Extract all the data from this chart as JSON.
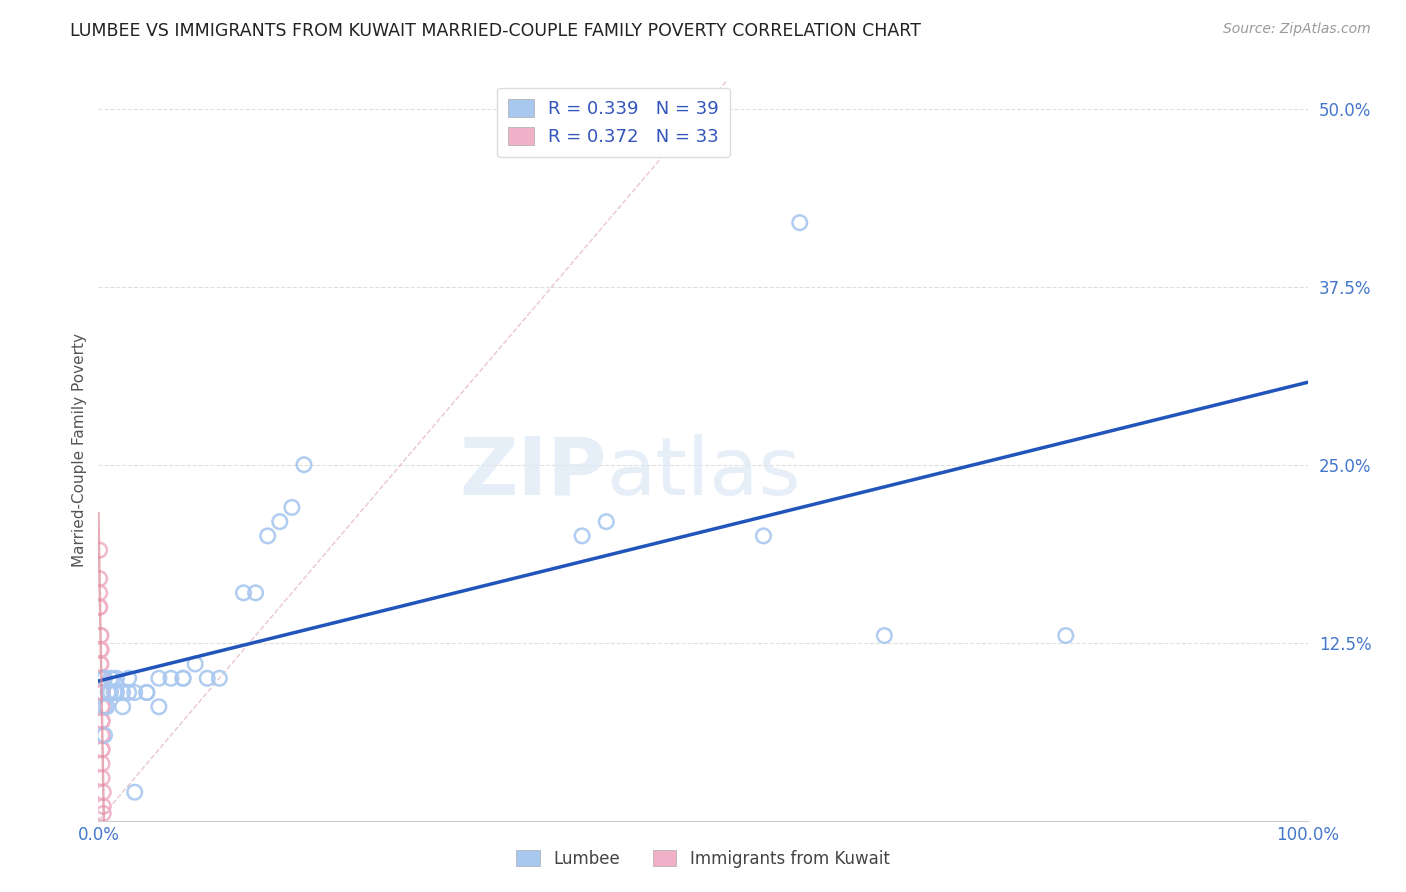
{
  "title": "LUMBEE VS IMMIGRANTS FROM KUWAIT MARRIED-COUPLE FAMILY POVERTY CORRELATION CHART",
  "source": "Source: ZipAtlas.com",
  "ylabel": "Married-Couple Family Poverty",
  "xlim": [
    0.0,
    1.0
  ],
  "ylim": [
    0.0,
    0.52
  ],
  "xticks": [
    0.0,
    0.25,
    0.5,
    0.75,
    1.0
  ],
  "xtick_labels": [
    "0.0%",
    "",
    "",
    "",
    "100.0%"
  ],
  "yticks": [
    0.0,
    0.125,
    0.25,
    0.375,
    0.5
  ],
  "ytick_labels": [
    "",
    "12.5%",
    "25.0%",
    "37.5%",
    "50.0%"
  ],
  "background_color": "#ffffff",
  "grid_color": "#e0e0e0",
  "lumbee_color": "#a8c8f0",
  "kuwait_color": "#f0b0c8",
  "trendline_lumbee_color": "#2255bb",
  "trendline_kuwait_color": "#dd8899",
  "diagonal_color": "#e8c0c8",
  "watermark_zip": "ZIP",
  "watermark_atlas": "atlas",
  "lumbee_x": [
    0.005,
    0.005,
    0.005,
    0.007,
    0.008,
    0.01,
    0.01,
    0.012,
    0.013,
    0.015,
    0.015,
    0.02,
    0.02,
    0.025,
    0.025,
    0.03,
    0.04,
    0.04,
    0.05,
    0.05,
    0.06,
    0.07,
    0.07,
    0.08,
    0.09,
    0.1,
    0.12,
    0.13,
    0.14,
    0.15,
    0.16,
    0.17,
    0.4,
    0.42,
    0.55,
    0.58,
    0.65,
    0.8,
    0.03
  ],
  "lumbee_y": [
    0.06,
    0.08,
    0.1,
    0.08,
    0.09,
    0.1,
    0.09,
    0.1,
    0.09,
    0.1,
    0.09,
    0.09,
    0.08,
    0.1,
    0.09,
    0.09,
    0.09,
    0.09,
    0.1,
    0.08,
    0.1,
    0.1,
    0.1,
    0.11,
    0.1,
    0.1,
    0.16,
    0.16,
    0.2,
    0.21,
    0.22,
    0.25,
    0.2,
    0.21,
    0.2,
    0.42,
    0.13,
    0.13,
    0.02
  ],
  "kuwait_x": [
    0.001,
    0.001,
    0.001,
    0.001,
    0.001,
    0.002,
    0.002,
    0.002,
    0.002,
    0.002,
    0.002,
    0.002,
    0.003,
    0.003,
    0.003,
    0.003,
    0.003,
    0.003,
    0.003,
    0.003,
    0.003,
    0.003,
    0.003,
    0.003,
    0.003,
    0.003,
    0.003,
    0.003,
    0.003,
    0.003,
    0.004,
    0.004,
    0.004
  ],
  "kuwait_y": [
    0.19,
    0.17,
    0.16,
    0.15,
    0.15,
    0.13,
    0.13,
    0.12,
    0.12,
    0.12,
    0.11,
    0.11,
    0.1,
    0.1,
    0.1,
    0.1,
    0.09,
    0.09,
    0.09,
    0.08,
    0.08,
    0.07,
    0.07,
    0.07,
    0.06,
    0.06,
    0.05,
    0.05,
    0.04,
    0.03,
    0.02,
    0.01,
    0.005
  ],
  "legend_r1": "R = 0.339",
  "legend_n1": "N = 39",
  "legend_r2": "R = 0.372",
  "legend_n2": "N = 33"
}
